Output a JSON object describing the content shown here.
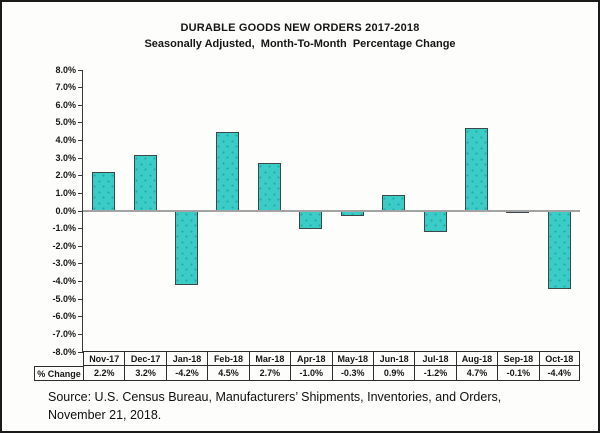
{
  "header": {
    "title": "DURABLE GOODS NEW ORDERS 2017-2018",
    "subtitle": "Seasonally Adjusted,  Month-To-Month  Percentage Change"
  },
  "source": {
    "line1": "Source: U.S. Census Bureau, Manufacturers’ Shipments, Inventories, and Orders,",
    "line2": "November 21, 2018."
  },
  "chart_data": {
    "type": "bar",
    "title": "DURABLE GOODS NEW ORDERS 2017-2018",
    "subtitle": "Seasonally Adjusted,  Month-To-Month  Percentage Change",
    "categories": [
      "Nov-17",
      "Dec-17",
      "Jan-18",
      "Feb-18",
      "Mar-18",
      "Apr-18",
      "May-18",
      "Jun-18",
      "Jul-18",
      "Aug-18",
      "Sep-18",
      "Oct-18"
    ],
    "values": [
      2.2,
      3.2,
      -4.2,
      4.5,
      2.7,
      -1.0,
      -0.3,
      0.9,
      -1.2,
      4.7,
      -0.1,
      -4.4
    ],
    "value_labels": [
      "2.2%",
      "3.2%",
      "-4.2%",
      "4.5%",
      "2.7%",
      "-1.0%",
      "-0.3%",
      "0.9%",
      "-1.2%",
      "4.7%",
      "-0.1%",
      "-4.4%"
    ],
    "row_header": "% Change",
    "xlabel": "",
    "ylabel": "",
    "ylim": [
      -8,
      8
    ],
    "ytick_step": 1,
    "ytick_labels": [
      "8.0%",
      "7.0%",
      "6.0%",
      "5.0%",
      "4.0%",
      "3.0%",
      "2.0%",
      "1.0%",
      "0.0%",
      "-1.0%",
      "-2.0%",
      "-3.0%",
      "-4.0%",
      "-5.0%",
      "-6.0%",
      "-7.0%",
      "-8.0%"
    ],
    "grid": false,
    "legend": "none",
    "data_table_shown": true,
    "bar_fill_color": "#3bccc8",
    "bar_dot_color": "#21a9a5",
    "bar_border_color": "#3c4747",
    "zero_line_color": "#a3a3a3",
    "axis_color": "#3a3a3a"
  }
}
